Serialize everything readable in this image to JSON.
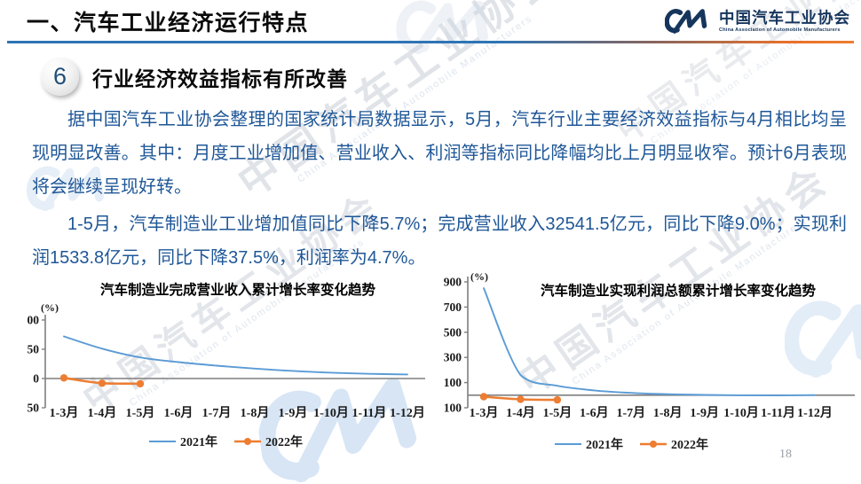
{
  "header": {
    "title": "一、汽车工业经济运行特点"
  },
  "logo": {
    "cn": "中国汽车工业协会",
    "en": "China Association of Automobile Manufacturers"
  },
  "section": {
    "number": "6",
    "title": "行业经济效益指标有所改善"
  },
  "body": {
    "p1": "据中国汽车工业协会整理的国家统计局数据显示，5月，汽车行业主要经济效益指标与4月相比均呈现明显改善。其中：月度工业增加值、营业收入、利润等指标同比降幅均比上月明显收窄。预计6月表现将会继续呈现好转。",
    "p2": "1-5月，汽车制造业工业增加值同比下降5.7%；完成营业收入32541.5亿元，同比下降9.0%；实现利润1533.8亿元，同比下降37.5%，利润率为4.7%。"
  },
  "watermark": {
    "cn": "中国汽车工业协会",
    "en": "China Association of Automobile Manufacturers"
  },
  "page_number": "18",
  "colors": {
    "accent_blue": "#2E74B5",
    "accent_orange": "#ED7D31",
    "series_2021": "#5B9BD5",
    "series_2022": "#ED7D31",
    "body_text": "#1F5797",
    "logo_blue": "#16355C",
    "axis_gray": "#7f7f7f"
  },
  "chart_data": [
    {
      "type": "line",
      "title": "汽车制造业完成营业收入累计增长率变化趋势",
      "unit_label": "(%)",
      "categories": [
        "1-3月",
        "1-4月",
        "1-5月",
        "1-6月",
        "1-7月",
        "1-8月",
        "1-9月",
        "1-10月",
        "1-11月",
        "1-12月"
      ],
      "ylim": [
        -50,
        100
      ],
      "yticks": [
        100,
        50,
        0,
        -50
      ],
      "grid": false,
      "legend_position": "bottom",
      "series": [
        {
          "name": "2021年",
          "color": "#5B9BD5",
          "marker": false,
          "values": [
            72,
            51,
            36,
            28,
            22,
            17,
            13,
            10,
            8,
            7
          ]
        },
        {
          "name": "2022年",
          "color": "#ED7D31",
          "marker": true,
          "values": [
            1,
            -8,
            -9
          ]
        }
      ]
    },
    {
      "type": "line",
      "title": "汽车制造业实现利润总额累计增长率变化趋势",
      "unit_label": "(%)",
      "categories": [
        "1-3月",
        "1-4月",
        "1-5月",
        "1-6月",
        "1-7月",
        "1-8月",
        "1-9月",
        "1-10月",
        "1-11月",
        "1-12月"
      ],
      "ylim": [
        -100,
        900
      ],
      "yticks": [
        900,
        700,
        500,
        300,
        100,
        -100
      ],
      "grid": false,
      "legend_position": "bottom",
      "series": [
        {
          "name": "2021年",
          "color": "#5B9BD5",
          "marker": false,
          "values": [
            850,
            160,
            75,
            38,
            18,
            8,
            2,
            -1,
            -2,
            1
          ]
        },
        {
          "name": "2022年",
          "color": "#ED7D31",
          "marker": true,
          "values": [
            -12,
            -33,
            -37.5
          ]
        }
      ]
    }
  ]
}
